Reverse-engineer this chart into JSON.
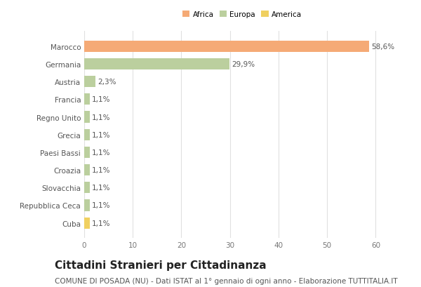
{
  "categories": [
    "Marocco",
    "Germania",
    "Austria",
    "Francia",
    "Regno Unito",
    "Grecia",
    "Paesi Bassi",
    "Croazia",
    "Slovacchia",
    "Repubblica Ceca",
    "Cuba"
  ],
  "values": [
    58.6,
    29.9,
    2.3,
    1.1,
    1.1,
    1.1,
    1.1,
    1.1,
    1.1,
    1.1,
    1.1
  ],
  "labels": [
    "58,6%",
    "29,9%",
    "2,3%",
    "1,1%",
    "1,1%",
    "1,1%",
    "1,1%",
    "1,1%",
    "1,1%",
    "1,1%",
    "1,1%"
  ],
  "colors": [
    "#F5AA76",
    "#BBCF9E",
    "#BBCF9E",
    "#BBCF9E",
    "#BBCF9E",
    "#BBCF9E",
    "#BBCF9E",
    "#BBCF9E",
    "#BBCF9E",
    "#BBCF9E",
    "#F0D060"
  ],
  "legend_labels": [
    "Africa",
    "Europa",
    "America"
  ],
  "legend_colors": [
    "#F5AA76",
    "#BBCF9E",
    "#F0D060"
  ],
  "xlim": [
    0,
    65
  ],
  "xticks": [
    0,
    10,
    20,
    30,
    40,
    50,
    60
  ],
  "title": "Cittadini Stranieri per Cittadinanza",
  "subtitle": "COMUNE DI POSADA (NU) - Dati ISTAT al 1° gennaio di ogni anno - Elaborazione TUTTITALIA.IT",
  "background_color": "#FFFFFF",
  "grid_color": "#E0E0E0",
  "title_fontsize": 11,
  "subtitle_fontsize": 7.5,
  "label_fontsize": 7.5,
  "tick_fontsize": 7.5,
  "bar_height": 0.65
}
